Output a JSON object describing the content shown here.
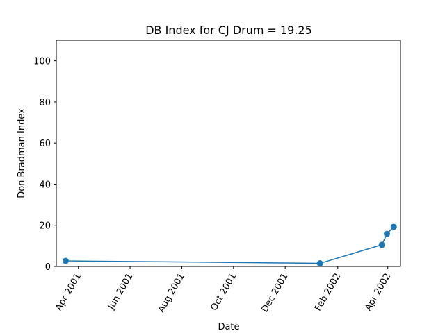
{
  "chart_data": {
    "type": "line",
    "title": "DB Index for CJ Drum = 19.25",
    "xlabel": "Date",
    "ylabel": "Don Bradman Index",
    "x_scale": "date",
    "xlim": [
      "2001-03-06",
      "2002-04-16"
    ],
    "ylim": [
      0,
      110
    ],
    "x_ticks": [
      {
        "date": "2001-04-01",
        "label": "Apr 2001"
      },
      {
        "date": "2001-06-01",
        "label": "Jun 2001"
      },
      {
        "date": "2001-08-01",
        "label": "Aug 2001"
      },
      {
        "date": "2001-10-01",
        "label": "Oct 2001"
      },
      {
        "date": "2001-12-01",
        "label": "Dec 2001"
      },
      {
        "date": "2002-02-01",
        "label": "Feb 2002"
      },
      {
        "date": "2002-04-01",
        "label": "Apr 2002"
      }
    ],
    "y_ticks": [
      0,
      20,
      40,
      60,
      80,
      100
    ],
    "grid": false,
    "legend": "none",
    "series": [
      {
        "color": "#1f77b4",
        "marker": "circle",
        "points": [
          {
            "x": "2001-03-17",
            "y": 2.7
          },
          {
            "x": "2002-01-11",
            "y": 1.5
          },
          {
            "x": "2002-03-25",
            "y": 10.5
          },
          {
            "x": "2002-03-31",
            "y": 15.8
          },
          {
            "x": "2002-04-08",
            "y": 19.25
          }
        ]
      }
    ]
  }
}
